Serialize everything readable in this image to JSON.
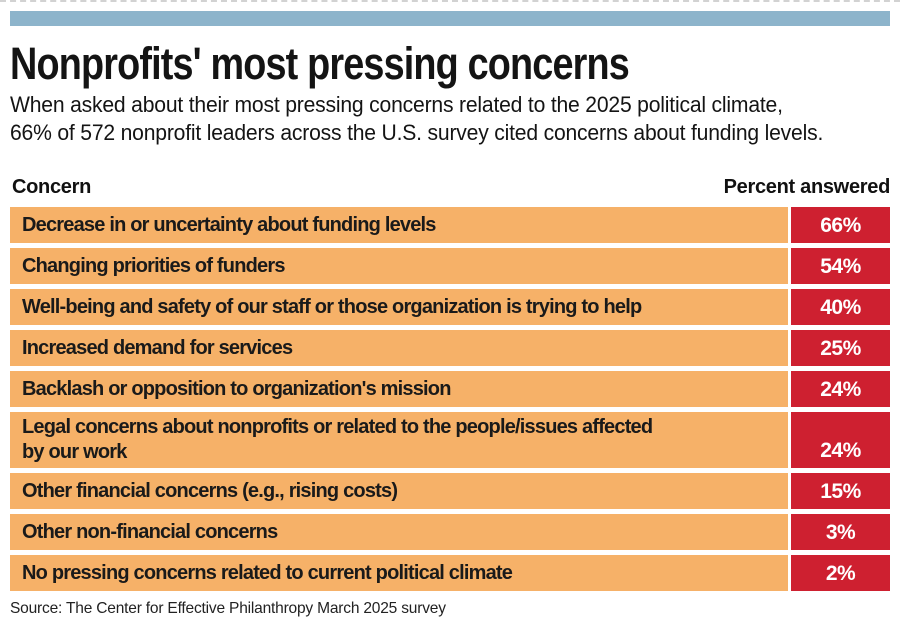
{
  "colors": {
    "accent_bar_blue": "#8DB4CB",
    "row_orange": "#F6B168",
    "value_red": "#CE2030",
    "text_black": "#1A1A1A"
  },
  "header": {
    "title": "Nonprofits' most pressing concerns",
    "subtitle_line1": "When asked about their most pressing concerns related to the 2025 political climate,",
    "subtitle_line2": "66% of 572 nonprofit leaders across the U.S. survey cited concerns about funding levels."
  },
  "table": {
    "concern_header": "Concern",
    "percent_header": "Percent answered",
    "rows": [
      {
        "label": "Decrease in or uncertainty about funding levels",
        "value": "66%"
      },
      {
        "label": "Changing priorities of funders",
        "value": "54%"
      },
      {
        "label": "Well-being and safety of our staff or those organization is trying to help",
        "value": "40%"
      },
      {
        "label": "Increased demand for services",
        "value": "25%"
      },
      {
        "label": "Backlash or opposition to organization's mission",
        "value": "24%"
      },
      {
        "label": "Legal concerns about nonprofits or related to the people/issues affected\nby our work",
        "value": "24%"
      },
      {
        "label": "Other financial concerns (e.g., rising costs)",
        "value": "15%"
      },
      {
        "label": "Other non-financial concerns",
        "value": "3%"
      },
      {
        "label": "No pressing concerns related to current political climate",
        "value": "2%"
      }
    ]
  },
  "source": "Source: The Center for Effective Philanthropy March 2025 survey",
  "chart_data": {
    "type": "table",
    "title": "Nonprofits' most pressing concerns",
    "subtitle": "When asked about their most pressing concerns related to the 2025 political climate, 66% of 572 nonprofit leaders across the U.S. survey cited concerns about funding levels.",
    "columns": [
      "Concern",
      "Percent answered"
    ],
    "categories": [
      "Decrease in or uncertainty about funding levels",
      "Changing priorities of funders",
      "Well-being and safety of our staff or those organization is trying to help",
      "Increased demand for services",
      "Backlash or opposition to organization's mission",
      "Legal concerns about nonprofits or related to the people/issues affected by our work",
      "Other financial concerns (e.g., rising costs)",
      "Other non-financial concerns",
      "No pressing concerns related to current political climate"
    ],
    "values": [
      66,
      54,
      40,
      25,
      24,
      24,
      15,
      3,
      2
    ],
    "unit": "%",
    "source": "Source: The Center for Effective Philanthropy March 2025 survey"
  }
}
